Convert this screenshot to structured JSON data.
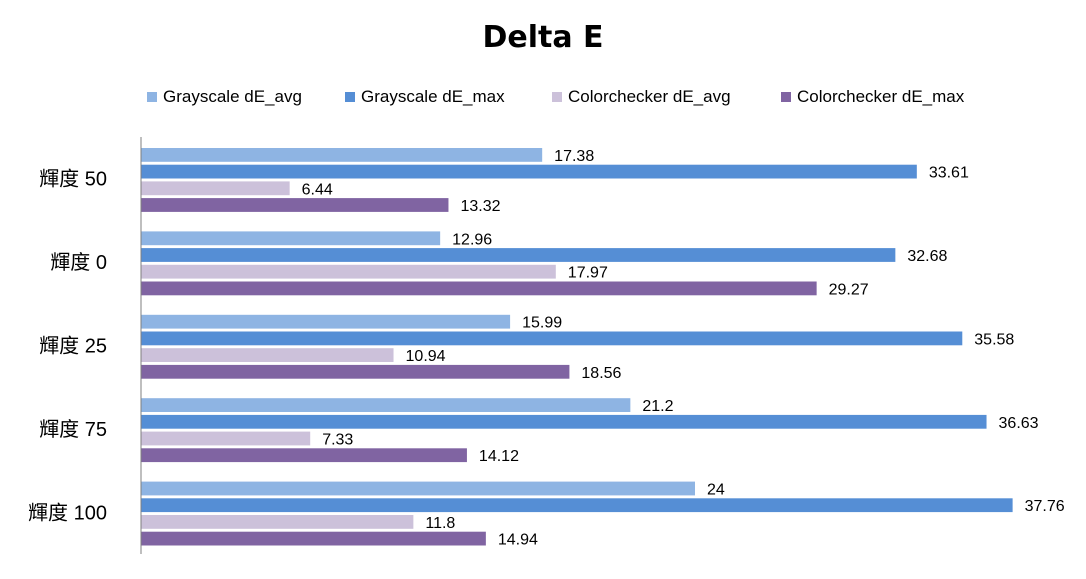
{
  "chart_data": {
    "type": "bar",
    "orientation": "horizontal",
    "title": "Delta E",
    "xlabel": "",
    "ylabel": "",
    "xlim": [
      0,
      40
    ],
    "grid": false,
    "legend_position": "top",
    "categories": [
      "輝度 50",
      "輝度 0",
      "輝度 25",
      "輝度 75",
      "輝度 100"
    ],
    "series": [
      {
        "name": "Grayscale dE_avg",
        "color": "#8EB4E3",
        "values": [
          17.38,
          12.96,
          15.99,
          21.2,
          24
        ]
      },
      {
        "name": "Grayscale dE_max",
        "color": "#558ED5",
        "values": [
          33.61,
          32.68,
          35.58,
          36.63,
          37.76
        ]
      },
      {
        "name": "Colorchecker dE_avg",
        "color": "#CCC1DA",
        "values": [
          6.44,
          17.97,
          10.94,
          7.33,
          11.8
        ]
      },
      {
        "name": "Colorchecker dE_max",
        "color": "#8064A2",
        "values": [
          13.32,
          29.27,
          18.56,
          14.12,
          14.94
        ]
      }
    ]
  }
}
